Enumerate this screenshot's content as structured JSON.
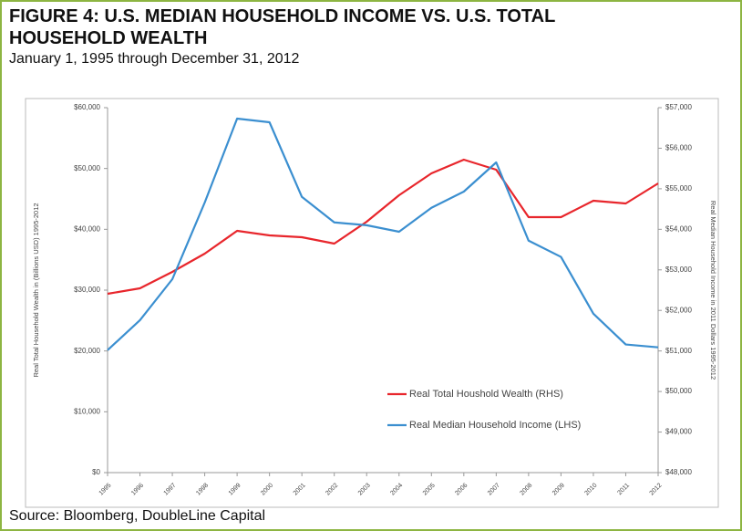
{
  "chart_data": {
    "type": "line",
    "title": "FIGURE 4: U.S. MEDIAN HOUSEHOLD INCOME VS. U.S. TOTAL HOUSEHOLD WEALTH",
    "subtitle": "January 1, 1995 through December 31, 2012",
    "source": "Source: Bloomberg, DoubleLine Capital",
    "y_label": "Real Total Household Wealth in (Billions USD) 1995-2012",
    "y2_label": "Real Median Household Income in 2011 Dollars 1995-2012",
    "categories": [
      "1995",
      "1996",
      "1997",
      "1998",
      "1999",
      "2000",
      "2001",
      "2002",
      "2003",
      "2004",
      "2005",
      "2006",
      "2007",
      "2008",
      "2009",
      "2010",
      "2011",
      "2012"
    ],
    "series": [
      {
        "name": "Real Total Houshold Wealth (RHS)",
        "color": "#e8262c",
        "axis": "y",
        "values": [
          29400,
          30300,
          33000,
          36000,
          39750,
          39000,
          38700,
          37650,
          41250,
          45600,
          49200,
          51450,
          49800,
          42000,
          42000,
          44700,
          44250,
          47550
        ]
      },
      {
        "name": "Real Median Household Income (LHS)",
        "color": "#3b8fd0",
        "axis": "y2",
        "values": [
          51020,
          51760,
          52770,
          54660,
          56730,
          56640,
          54800,
          54170,
          54100,
          53940,
          54530,
          54930,
          55650,
          53720,
          53320,
          51920,
          51160,
          51090
        ]
      }
    ],
    "ylim": [
      0,
      60000
    ],
    "yticks": [
      {
        "value": 0,
        "label": "$0"
      },
      {
        "value": 10000,
        "label": "$10,000"
      },
      {
        "value": 20000,
        "label": "$20,000"
      },
      {
        "value": 30000,
        "label": "$30,000"
      },
      {
        "value": 40000,
        "label": "$40,000"
      },
      {
        "value": 50000,
        "label": "$50,000"
      },
      {
        "value": 60000,
        "label": "$60,000"
      }
    ],
    "y2lim": [
      48000,
      57000
    ],
    "y2ticks": [
      {
        "value": 48000,
        "label": "$48,000"
      },
      {
        "value": 49000,
        "label": "$49,000"
      },
      {
        "value": 50000,
        "label": "$50,000"
      },
      {
        "value": 51000,
        "label": "$51,000"
      },
      {
        "value": 52000,
        "label": "$52,000"
      },
      {
        "value": 53000,
        "label": "$53,000"
      },
      {
        "value": 54000,
        "label": "$54,000"
      },
      {
        "value": 55000,
        "label": "$55,000"
      },
      {
        "value": 56000,
        "label": "$56,000"
      },
      {
        "value": 57000,
        "label": "$57,000"
      }
    ],
    "grid": false
  }
}
